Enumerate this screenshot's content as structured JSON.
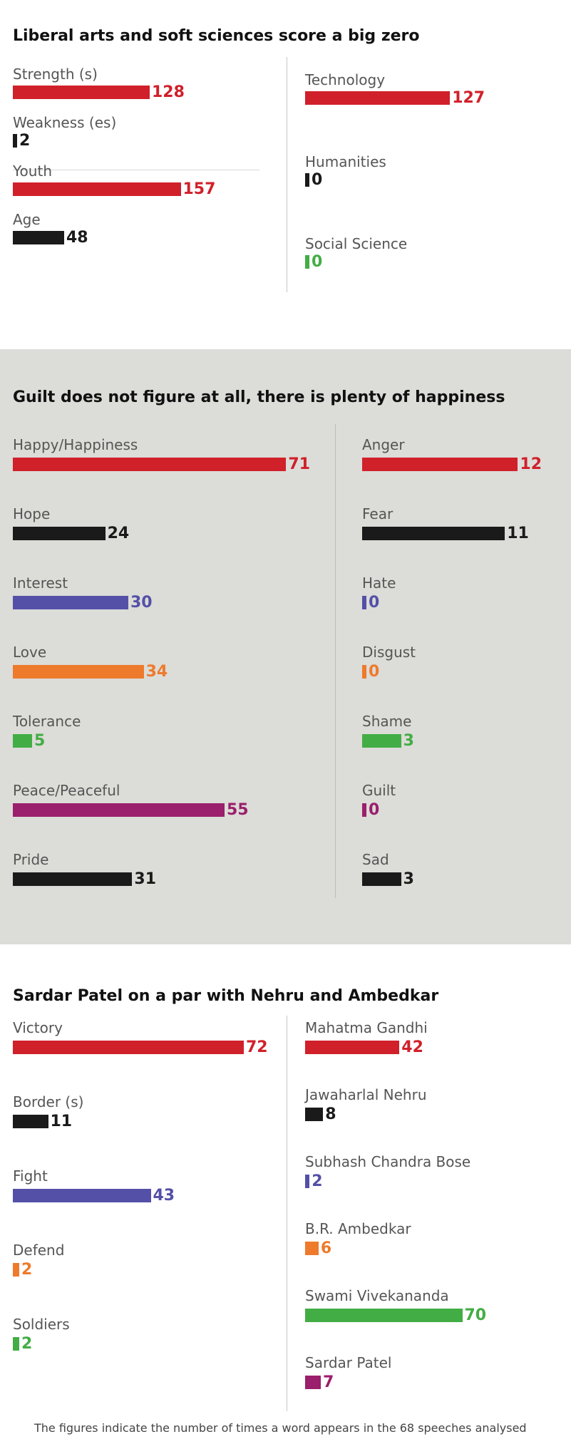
{
  "colors": {
    "red": "#d0202a",
    "black": "#1a1a1a",
    "blue": "#5450a8",
    "orange": "#ee7a2c",
    "green": "#43ad45",
    "purple": "#9a1f6c",
    "panel_grey": "#dcdcd8"
  },
  "footnote": "The figures indicate the number of times a word appears in the 68 speeches analysed",
  "chart_data": [
    {
      "type": "bar",
      "title": "Liberal arts and soft sciences score a big zero",
      "series": [
        {
          "items": [
            {
              "label": "Strength (s)",
              "value": 128,
              "color": "red"
            },
            {
              "label": "Weakness (es)",
              "value": 2,
              "color": "black"
            },
            {
              "label": "Youth",
              "value": 157,
              "color": "red"
            },
            {
              "label": "Age",
              "value": 48,
              "color": "black"
            }
          ]
        },
        {
          "items": [
            {
              "label": "Technology",
              "value": 127,
              "color": "red"
            },
            {
              "label": "Humanities",
              "value": 0,
              "color": "black"
            },
            {
              "label": "Social Science",
              "value": 0,
              "color": "green"
            }
          ]
        }
      ]
    },
    {
      "type": "bar",
      "title": "Guilt does not figure at all, there is plenty of happiness",
      "series": [
        {
          "items": [
            {
              "label": "Happy/Happiness",
              "value": 71,
              "color": "red"
            },
            {
              "label": "Hope",
              "value": 24,
              "color": "black"
            },
            {
              "label": "Interest",
              "value": 30,
              "color": "blue"
            },
            {
              "label": "Love",
              "value": 34,
              "color": "orange"
            },
            {
              "label": "Tolerance",
              "value": 5,
              "color": "green"
            },
            {
              "label": "Peace/Peaceful",
              "value": 55,
              "color": "purple"
            },
            {
              "label": "Pride",
              "value": 31,
              "color": "black"
            }
          ]
        },
        {
          "items": [
            {
              "label": "Anger",
              "value": 12,
              "color": "red"
            },
            {
              "label": "Fear",
              "value": 11,
              "color": "black"
            },
            {
              "label": "Hate",
              "value": 0,
              "color": "blue"
            },
            {
              "label": "Disgust",
              "value": 0,
              "color": "orange"
            },
            {
              "label": "Shame",
              "value": 3,
              "color": "green"
            },
            {
              "label": "Guilt",
              "value": 0,
              "color": "purple"
            },
            {
              "label": "Sad",
              "value": 3,
              "color": "black"
            }
          ]
        }
      ]
    },
    {
      "type": "bar",
      "title": "Sardar Patel on a par with Nehru and Ambedkar",
      "series": [
        {
          "items": [
            {
              "label": "Victory",
              "value": 72,
              "color": "red"
            },
            {
              "label": "Border (s)",
              "value": 11,
              "color": "black"
            },
            {
              "label": "Fight",
              "value": 43,
              "color": "blue"
            },
            {
              "label": "Defend",
              "value": 2,
              "color": "orange"
            },
            {
              "label": "Soldiers",
              "value": 2,
              "color": "green"
            }
          ]
        },
        {
          "items": [
            {
              "label": "Mahatma Gandhi",
              "value": 42,
              "color": "red"
            },
            {
              "label": "Jawaharlal Nehru",
              "value": 8,
              "color": "black"
            },
            {
              "label": "Subhash Chandra Bose",
              "value": 2,
              "color": "blue"
            },
            {
              "label": "B.R. Ambedkar",
              "value": 6,
              "color": "orange"
            },
            {
              "label": "Swami Vivekananda",
              "value": 70,
              "color": "green"
            },
            {
              "label": "Sardar Patel",
              "value": 7,
              "color": "purple"
            }
          ]
        }
      ]
    }
  ]
}
